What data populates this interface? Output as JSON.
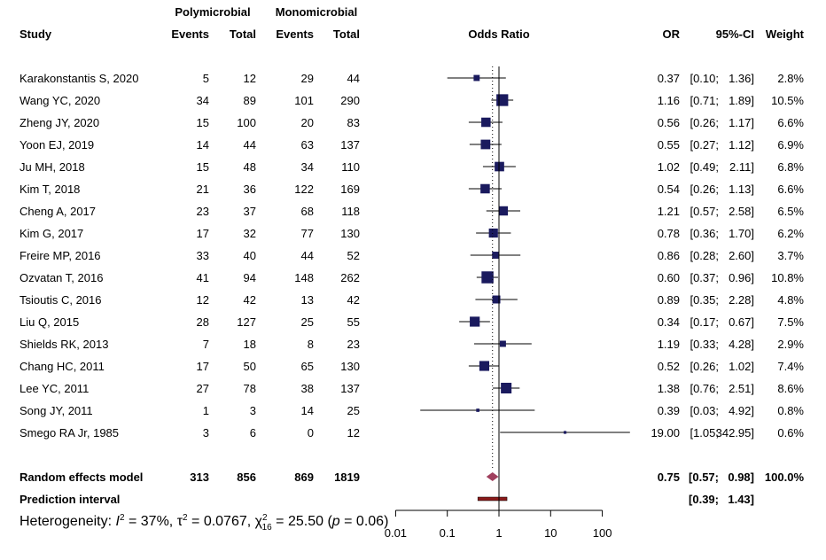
{
  "chart_data": {
    "type": "forest",
    "scale": "log",
    "xlim": [
      0.01,
      100
    ],
    "x_ticks": [
      "0.01",
      "0.1",
      "1",
      "10",
      "100"
    ],
    "null_line": 1,
    "headers": {
      "group1": "Polymicrobial",
      "group2": "Monomicrobial",
      "study": "Study",
      "events": "Events",
      "total": "Total",
      "plot": "Odds Ratio",
      "or": "OR",
      "ci": "95%-CI",
      "weight": "Weight"
    },
    "studies": [
      {
        "study": "Karakonstantis S, 2020",
        "e1": "5",
        "n1": "12",
        "e2": "29",
        "n2": "44",
        "or": 0.37,
        "lo": 0.1,
        "hi": 1.36,
        "or_t": "0.37",
        "lo_t": "[0.10;",
        "hi_t": "1.36]",
        "w": 2.8,
        "w_t": "2.8%"
      },
      {
        "study": "Wang YC, 2020",
        "e1": "34",
        "n1": "89",
        "e2": "101",
        "n2": "290",
        "or": 1.16,
        "lo": 0.71,
        "hi": 1.89,
        "or_t": "1.16",
        "lo_t": "[0.71;",
        "hi_t": "1.89]",
        "w": 10.5,
        "w_t": "10.5%"
      },
      {
        "study": "Zheng JY, 2020",
        "e1": "15",
        "n1": "100",
        "e2": "20",
        "n2": "83",
        "or": 0.56,
        "lo": 0.26,
        "hi": 1.17,
        "or_t": "0.56",
        "lo_t": "[0.26;",
        "hi_t": "1.17]",
        "w": 6.6,
        "w_t": "6.6%"
      },
      {
        "study": "Yoon EJ, 2019",
        "e1": "14",
        "n1": "44",
        "e2": "63",
        "n2": "137",
        "or": 0.55,
        "lo": 0.27,
        "hi": 1.12,
        "or_t": "0.55",
        "lo_t": "[0.27;",
        "hi_t": "1.12]",
        "w": 6.9,
        "w_t": "6.9%"
      },
      {
        "study": "Ju MH, 2018",
        "e1": "15",
        "n1": "48",
        "e2": "34",
        "n2": "110",
        "or": 1.02,
        "lo": 0.49,
        "hi": 2.11,
        "or_t": "1.02",
        "lo_t": "[0.49;",
        "hi_t": "2.11]",
        "w": 6.8,
        "w_t": "6.8%"
      },
      {
        "study": "Kim T, 2018",
        "e1": "21",
        "n1": "36",
        "e2": "122",
        "n2": "169",
        "or": 0.54,
        "lo": 0.26,
        "hi": 1.13,
        "or_t": "0.54",
        "lo_t": "[0.26;",
        "hi_t": "1.13]",
        "w": 6.6,
        "w_t": "6.6%"
      },
      {
        "study": "Cheng A, 2017",
        "e1": "23",
        "n1": "37",
        "e2": "68",
        "n2": "118",
        "or": 1.21,
        "lo": 0.57,
        "hi": 2.58,
        "or_t": "1.21",
        "lo_t": "[0.57;",
        "hi_t": "2.58]",
        "w": 6.5,
        "w_t": "6.5%"
      },
      {
        "study": "Kim G, 2017",
        "e1": "17",
        "n1": "32",
        "e2": "77",
        "n2": "130",
        "or": 0.78,
        "lo": 0.36,
        "hi": 1.7,
        "or_t": "0.78",
        "lo_t": "[0.36;",
        "hi_t": "1.70]",
        "w": 6.2,
        "w_t": "6.2%"
      },
      {
        "study": "Freire MP, 2016",
        "e1": "33",
        "n1": "40",
        "e2": "44",
        "n2": "52",
        "or": 0.86,
        "lo": 0.28,
        "hi": 2.6,
        "or_t": "0.86",
        "lo_t": "[0.28;",
        "hi_t": "2.60]",
        "w": 3.7,
        "w_t": "3.7%"
      },
      {
        "study": "Ozvatan T, 2016",
        "e1": "41",
        "n1": "94",
        "e2": "148",
        "n2": "262",
        "or": 0.6,
        "lo": 0.37,
        "hi": 0.96,
        "or_t": "0.60",
        "lo_t": "[0.37;",
        "hi_t": "0.96]",
        "w": 10.8,
        "w_t": "10.8%"
      },
      {
        "study": "Tsioutis C, 2016",
        "e1": "12",
        "n1": "42",
        "e2": "13",
        "n2": "42",
        "or": 0.89,
        "lo": 0.35,
        "hi": 2.28,
        "or_t": "0.89",
        "lo_t": "[0.35;",
        "hi_t": "2.28]",
        "w": 4.8,
        "w_t": "4.8%"
      },
      {
        "study": "Liu Q, 2015",
        "e1": "28",
        "n1": "127",
        "e2": "25",
        "n2": "55",
        "or": 0.34,
        "lo": 0.17,
        "hi": 0.67,
        "or_t": "0.34",
        "lo_t": "[0.17;",
        "hi_t": "0.67]",
        "w": 7.5,
        "w_t": "7.5%"
      },
      {
        "study": "Shields RK, 2013",
        "e1": "7",
        "n1": "18",
        "e2": "8",
        "n2": "23",
        "or": 1.19,
        "lo": 0.33,
        "hi": 4.28,
        "or_t": "1.19",
        "lo_t": "[0.33;",
        "hi_t": "4.28]",
        "w": 2.9,
        "w_t": "2.9%"
      },
      {
        "study": "Chang HC, 2011",
        "e1": "17",
        "n1": "50",
        "e2": "65",
        "n2": "130",
        "or": 0.52,
        "lo": 0.26,
        "hi": 1.02,
        "or_t": "0.52",
        "lo_t": "[0.26;",
        "hi_t": "1.02]",
        "w": 7.4,
        "w_t": "7.4%"
      },
      {
        "study": "Lee YC, 2011",
        "e1": "27",
        "n1": "78",
        "e2": "38",
        "n2": "137",
        "or": 1.38,
        "lo": 0.76,
        "hi": 2.51,
        "or_t": "1.38",
        "lo_t": "[0.76;",
        "hi_t": "2.51]",
        "w": 8.6,
        "w_t": "8.6%"
      },
      {
        "study": "Song JY, 2011",
        "e1": "1",
        "n1": "3",
        "e2": "14",
        "n2": "25",
        "or": 0.39,
        "lo": 0.03,
        "hi": 4.92,
        "or_t": "0.39",
        "lo_t": "[0.03;",
        "hi_t": "4.92]",
        "w": 0.8,
        "w_t": "0.8%"
      },
      {
        "study": "Smego RA Jr, 1985",
        "e1": "3",
        "n1": "6",
        "e2": "0",
        "n2": "12",
        "or": 19.0,
        "lo": 1.05,
        "hi": 342.95,
        "or_t": "19.00",
        "lo_t": "[1.05;",
        "hi_t": "342.95]",
        "w": 0.6,
        "w_t": "0.6%"
      }
    ],
    "random": {
      "label": "Random effects model",
      "e1": "313",
      "n1": "856",
      "e2": "869",
      "n2": "1819",
      "or": 0.75,
      "lo": 0.57,
      "hi": 0.98,
      "or_t": "0.75",
      "lo_t": "[0.57;",
      "hi_t": "0.98]",
      "w_t": "100.0%"
    },
    "prediction": {
      "label": "Prediction interval",
      "lo": 0.39,
      "hi": 1.43,
      "lo_t": "[0.39;",
      "hi_t": "1.43]"
    },
    "heterogeneity": {
      "prefix": "Heterogeneity: ",
      "i2": "I",
      "i2_val": " = 37%, ",
      "tau": "τ",
      "tau_val": " = 0.0767, ",
      "chi": "χ",
      "chi_sub": "16",
      "chi_val": " = 25.50 (",
      "p": "p",
      "p_val": " = 0.06)"
    },
    "colors": {
      "square": "#1a1a5e",
      "diamond": "#a0405e",
      "prediction": "#8b1a1a",
      "line": "#000000"
    }
  }
}
